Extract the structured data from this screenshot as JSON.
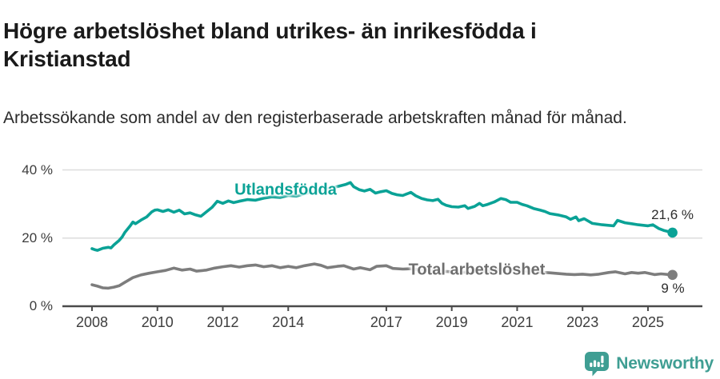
{
  "header": {
    "title": "Högre arbetslöshet bland utrikes- än inrikesfödda i Kristianstad",
    "subtitle": "Arbetssökande som andel av den registerbaserade arbetskraften månad för månad."
  },
  "colors": {
    "teal_series": "#0aa296",
    "gray_series": "#7d7d7d",
    "gray_label": "#6e6e6e",
    "axis": "#4b4b4b",
    "gridline": "#dcdcdc",
    "tick_label": "#3d3d3d",
    "annotation": "#2d2d2d",
    "brand_teal": "#3f9e93",
    "title_text": "#1a1a1a"
  },
  "chart_data": {
    "type": "line",
    "title": "Högre arbetslöshet bland utrikes- än inrikesfödda i Kristianstad",
    "subtitle": "Arbetssökande som andel av den registerbaserade arbetskraften månad för månad.",
    "xlabel": "",
    "ylabel": "",
    "grid": "horizontal",
    "legend_position": "inline-labels",
    "xlim": [
      2007.1,
      2026.7
    ],
    "ylim": [
      0,
      42
    ],
    "x_axis": {
      "ticks": [
        2008,
        2010,
        2012,
        2014,
        2017,
        2019,
        2021,
        2023,
        2025
      ]
    },
    "y_axis": {
      "ticks": [
        {
          "value": 0,
          "label": "0 %"
        },
        {
          "value": 20,
          "label": "20 %"
        },
        {
          "value": 40,
          "label": "40 %"
        }
      ]
    },
    "series": [
      {
        "id": "utlandsfodda",
        "name": "Utlandsfödda",
        "color": "#0aa296",
        "end_label": "21,6 %",
        "end_value": 21.6,
        "points": [
          [
            2008.0,
            16.9
          ],
          [
            2008.08,
            16.6
          ],
          [
            2008.17,
            16.4
          ],
          [
            2008.33,
            17.0
          ],
          [
            2008.5,
            17.3
          ],
          [
            2008.58,
            17.1
          ],
          [
            2008.67,
            18.0
          ],
          [
            2008.83,
            19.3
          ],
          [
            2008.92,
            20.3
          ],
          [
            2009.0,
            21.6
          ],
          [
            2009.17,
            23.6
          ],
          [
            2009.25,
            24.7
          ],
          [
            2009.33,
            24.2
          ],
          [
            2009.5,
            25.3
          ],
          [
            2009.67,
            26.2
          ],
          [
            2009.83,
            27.7
          ],
          [
            2009.92,
            28.2
          ],
          [
            2010.0,
            28.3
          ],
          [
            2010.17,
            27.8
          ],
          [
            2010.33,
            28.3
          ],
          [
            2010.5,
            27.6
          ],
          [
            2010.67,
            28.2
          ],
          [
            2010.83,
            27.1
          ],
          [
            2011.0,
            27.4
          ],
          [
            2011.17,
            26.8
          ],
          [
            2011.33,
            26.4
          ],
          [
            2011.5,
            27.7
          ],
          [
            2011.67,
            29.0
          ],
          [
            2011.83,
            30.8
          ],
          [
            2012.0,
            30.2
          ],
          [
            2012.17,
            30.9
          ],
          [
            2012.33,
            30.4
          ],
          [
            2012.5,
            30.8
          ],
          [
            2012.75,
            31.3
          ],
          [
            2013.0,
            31.1
          ],
          [
            2013.25,
            31.7
          ],
          [
            2013.5,
            32.1
          ],
          [
            2013.75,
            31.9
          ],
          [
            2014.0,
            32.5
          ],
          [
            2014.25,
            32.3
          ],
          [
            2014.5,
            33.0
          ],
          [
            2014.75,
            33.6
          ],
          [
            2015.0,
            34.1
          ],
          [
            2015.25,
            34.6
          ],
          [
            2015.5,
            35.1
          ],
          [
            2015.75,
            35.7
          ],
          [
            2015.9,
            36.3
          ],
          [
            2016.0,
            35.1
          ],
          [
            2016.17,
            34.2
          ],
          [
            2016.33,
            33.8
          ],
          [
            2016.5,
            34.3
          ],
          [
            2016.67,
            33.2
          ],
          [
            2016.83,
            33.6
          ],
          [
            2017.0,
            33.9
          ],
          [
            2017.17,
            33.1
          ],
          [
            2017.33,
            32.7
          ],
          [
            2017.5,
            32.5
          ],
          [
            2017.75,
            33.4
          ],
          [
            2017.9,
            32.4
          ],
          [
            2018.08,
            31.6
          ],
          [
            2018.25,
            31.2
          ],
          [
            2018.42,
            31.0
          ],
          [
            2018.58,
            31.4
          ],
          [
            2018.7,
            30.2
          ],
          [
            2018.83,
            29.6
          ],
          [
            2019.0,
            29.2
          ],
          [
            2019.2,
            29.1
          ],
          [
            2019.4,
            29.5
          ],
          [
            2019.5,
            28.7
          ],
          [
            2019.7,
            29.3
          ],
          [
            2019.85,
            30.2
          ],
          [
            2019.95,
            29.5
          ],
          [
            2020.1,
            29.9
          ],
          [
            2020.3,
            30.6
          ],
          [
            2020.5,
            31.6
          ],
          [
            2020.65,
            31.3
          ],
          [
            2020.8,
            30.5
          ],
          [
            2021.0,
            30.5
          ],
          [
            2021.15,
            29.9
          ],
          [
            2021.3,
            29.5
          ],
          [
            2021.5,
            28.7
          ],
          [
            2021.7,
            28.2
          ],
          [
            2021.85,
            27.8
          ],
          [
            2022.0,
            27.2
          ],
          [
            2022.25,
            26.8
          ],
          [
            2022.5,
            26.2
          ],
          [
            2022.63,
            25.5
          ],
          [
            2022.8,
            26.2
          ],
          [
            2022.88,
            25.1
          ],
          [
            2023.05,
            25.7
          ],
          [
            2023.3,
            24.3
          ],
          [
            2023.6,
            23.9
          ],
          [
            2023.95,
            23.6
          ],
          [
            2024.07,
            25.2
          ],
          [
            2024.3,
            24.5
          ],
          [
            2024.5,
            24.2
          ],
          [
            2024.7,
            23.9
          ],
          [
            2025.0,
            23.6
          ],
          [
            2025.15,
            23.9
          ],
          [
            2025.33,
            22.8
          ],
          [
            2025.5,
            22.2
          ],
          [
            2025.75,
            21.6
          ]
        ]
      },
      {
        "id": "total",
        "name": "Total arbetslöshet",
        "color": "#7d7d7d",
        "end_label": "9 %",
        "end_value": 9,
        "points": [
          [
            2008.0,
            6.3
          ],
          [
            2008.17,
            5.9
          ],
          [
            2008.33,
            5.4
          ],
          [
            2008.5,
            5.3
          ],
          [
            2008.67,
            5.6
          ],
          [
            2008.83,
            6.0
          ],
          [
            2009.0,
            7.0
          ],
          [
            2009.25,
            8.4
          ],
          [
            2009.5,
            9.2
          ],
          [
            2009.75,
            9.7
          ],
          [
            2010.0,
            10.1
          ],
          [
            2010.25,
            10.5
          ],
          [
            2010.5,
            11.2
          ],
          [
            2010.75,
            10.6
          ],
          [
            2011.0,
            10.9
          ],
          [
            2011.2,
            10.3
          ],
          [
            2011.5,
            10.6
          ],
          [
            2011.75,
            11.2
          ],
          [
            2012.0,
            11.6
          ],
          [
            2012.25,
            11.9
          ],
          [
            2012.5,
            11.5
          ],
          [
            2012.75,
            11.9
          ],
          [
            2013.0,
            12.1
          ],
          [
            2013.25,
            11.6
          ],
          [
            2013.5,
            11.9
          ],
          [
            2013.75,
            11.3
          ],
          [
            2014.0,
            11.7
          ],
          [
            2014.25,
            11.3
          ],
          [
            2014.5,
            11.9
          ],
          [
            2014.8,
            12.4
          ],
          [
            2015.0,
            12.0
          ],
          [
            2015.2,
            11.3
          ],
          [
            2015.5,
            11.7
          ],
          [
            2015.7,
            11.9
          ],
          [
            2016.0,
            10.9
          ],
          [
            2016.2,
            11.3
          ],
          [
            2016.5,
            10.7
          ],
          [
            2016.7,
            11.7
          ],
          [
            2017.0,
            11.9
          ],
          [
            2017.2,
            11.1
          ],
          [
            2017.5,
            10.9
          ],
          [
            2017.75,
            11.0
          ],
          [
            2018.0,
            10.7
          ],
          [
            2018.5,
            10.4
          ],
          [
            2019.0,
            10.1
          ],
          [
            2019.5,
            10.0
          ],
          [
            2020.0,
            10.3
          ],
          [
            2020.5,
            10.9
          ],
          [
            2021.0,
            10.6
          ],
          [
            2021.5,
            10.1
          ],
          [
            2022.0,
            9.8
          ],
          [
            2022.25,
            9.6
          ],
          [
            2022.5,
            9.4
          ],
          [
            2022.75,
            9.3
          ],
          [
            2023.0,
            9.4
          ],
          [
            2023.25,
            9.2
          ],
          [
            2023.5,
            9.4
          ],
          [
            2023.8,
            9.9
          ],
          [
            2024.0,
            10.1
          ],
          [
            2024.3,
            9.5
          ],
          [
            2024.5,
            9.9
          ],
          [
            2024.7,
            9.7
          ],
          [
            2024.9,
            9.9
          ],
          [
            2025.2,
            9.3
          ],
          [
            2025.4,
            9.5
          ],
          [
            2025.75,
            9.2
          ]
        ]
      }
    ]
  },
  "footer": {
    "brand": "Newsworthy",
    "logo_icon": "bar-chart-speech-bubble"
  }
}
